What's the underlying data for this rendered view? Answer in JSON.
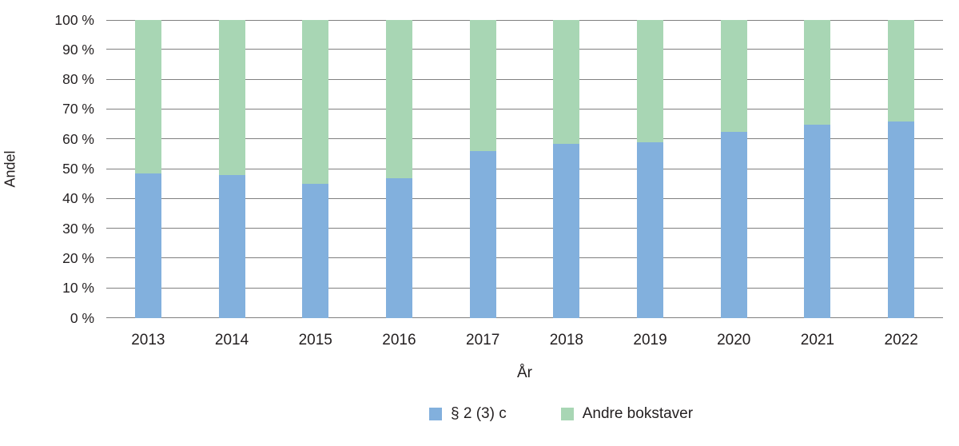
{
  "colors": {
    "series_blue": "#82b0dd",
    "series_green": "#a8d6b4",
    "gridline": "#808080",
    "text": "#231f20",
    "background": "#ffffff"
  },
  "chart_data": {
    "type": "bar",
    "stacked": true,
    "percent_stacked": true,
    "title": "",
    "xlabel": "År",
    "ylabel": "Andel",
    "ylim": [
      0,
      100
    ],
    "ytick_step": 10,
    "ytick_suffix": " %",
    "grid": true,
    "legend_position": "bottom",
    "categories": [
      "2013",
      "2014",
      "2015",
      "2016",
      "2017",
      "2018",
      "2019",
      "2020",
      "2021",
      "2022"
    ],
    "series": [
      {
        "name": "§ 2 (3) c",
        "color": "#82b0dd",
        "values": [
          48.5,
          48,
          45,
          47,
          56,
          58.5,
          59,
          62.5,
          65,
          66
        ]
      },
      {
        "name": "Andre bokstaver",
        "color": "#a8d6b4",
        "values": [
          51.5,
          52,
          55,
          53,
          44,
          41.5,
          41,
          37.5,
          35,
          34
        ]
      }
    ]
  }
}
